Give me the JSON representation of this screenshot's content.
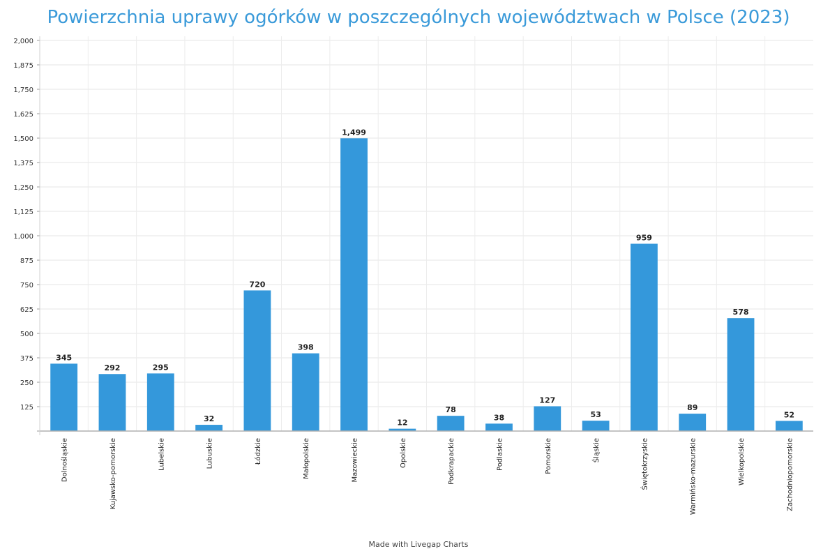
{
  "chart_data": {
    "type": "bar",
    "title": "Powierzchnia uprawy ogórków w poszczególnych województwach w Polsce (2023)",
    "categories": [
      "Dolnośląskie",
      "Kujawsko-pomorskie",
      "Lubelskie",
      "Lubuskie",
      "Łódzkie",
      "Małopolskie",
      "Mazowieckie",
      "Opolskie",
      "Podkrapackie",
      "Podlaskie",
      "Pomorskie",
      "Śląskie",
      "Świętokrzyskie",
      "Warmińsko-mazurskie",
      "Wielkopolskie",
      "Zachodniopomorskie"
    ],
    "values": [
      345,
      292,
      295,
      32,
      720,
      398,
      1499,
      12,
      78,
      38,
      127,
      53,
      959,
      89,
      578,
      52
    ],
    "value_labels": [
      "345",
      "292",
      "295",
      "32",
      "720",
      "398",
      "1,499",
      "12",
      "78",
      "38",
      "127",
      "53",
      "959",
      "89",
      "578",
      "52"
    ],
    "yticks": [
      "2,000",
      "1,875",
      "1,750",
      "1,625",
      "1,500",
      "1,375",
      "1,250",
      "1,125",
      "1,000",
      "875",
      "750",
      "625",
      "500",
      "375",
      "250",
      "125",
      ""
    ],
    "ylim": [
      0,
      2000
    ],
    "xlabel": "",
    "ylabel": "",
    "grid": true,
    "bar_color": "#3498db",
    "title_color": "#3a9ad9"
  },
  "footer": {
    "text": "Made with Livegap Charts"
  }
}
